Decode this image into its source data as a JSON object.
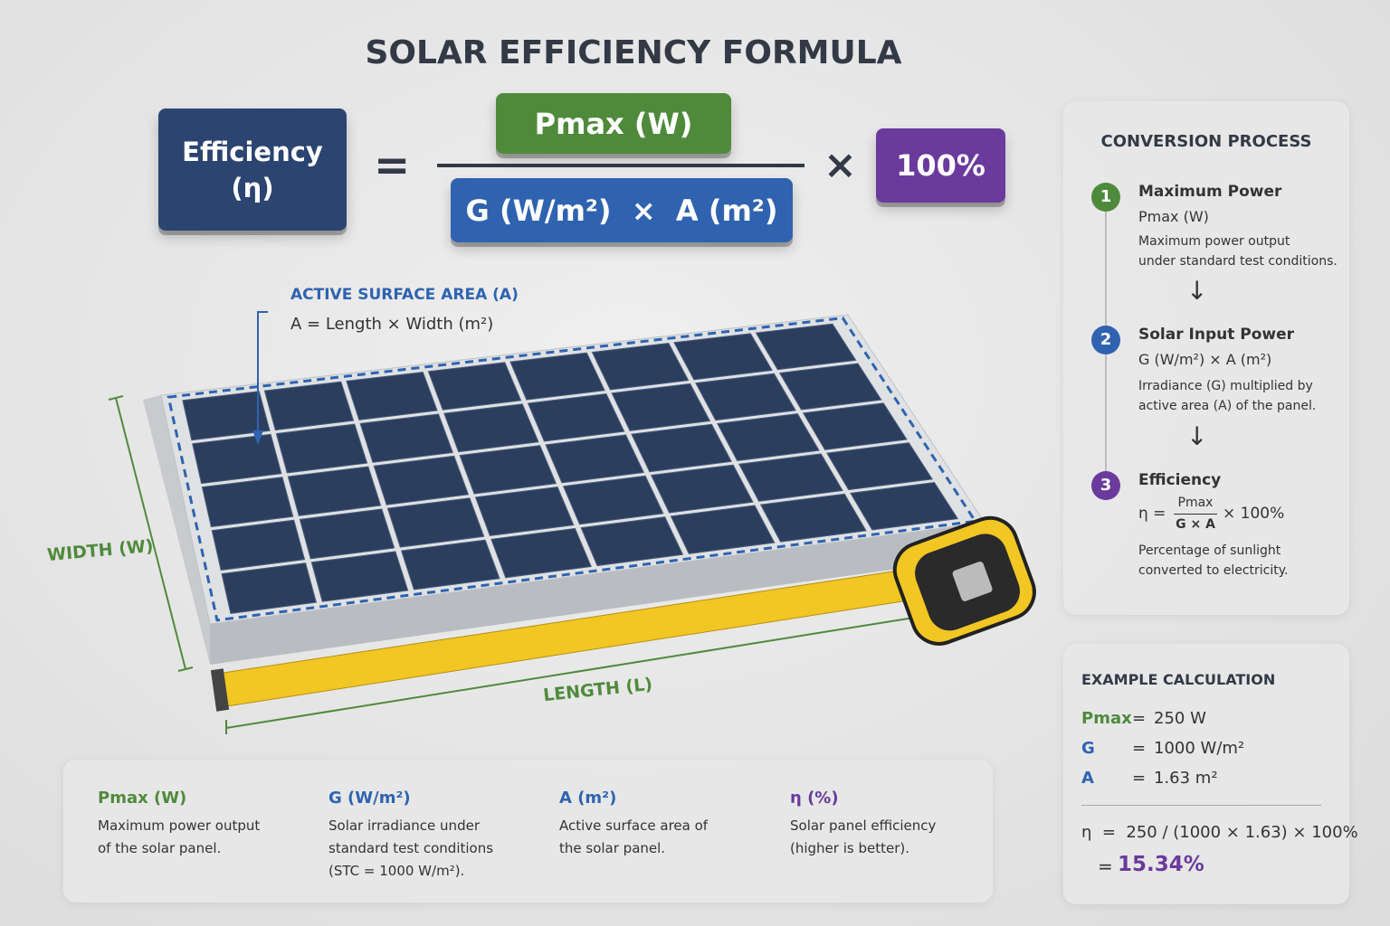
{
  "title": "SOLAR EFFICIENCY FORMULA",
  "formula": {
    "lhs": [
      "Efficiency",
      "(η)"
    ],
    "equals": "=",
    "numerator": "Pmax (W)",
    "denominator": "G (W/m²)  ×  A (m²)",
    "times": "×",
    "multiplier": "100%"
  },
  "panel": {
    "area_label": "ACTIVE SURFACE AREA (A)",
    "area_formula": "A = Length × Width (m²)",
    "width_label": "WIDTH (W)",
    "length_label": "LENGTH (L)"
  },
  "definitions": [
    {
      "term": "Pmax (W)",
      "lines": [
        "Maximum power output",
        "of the solar panel."
      ]
    },
    {
      "term": "G (W/m²)",
      "lines": [
        "Solar irradiance under",
        "standard test conditions",
        "(STC = 1000 W/m²)."
      ]
    },
    {
      "term": "A (m²)",
      "lines": [
        "Active surface area of",
        "the solar panel."
      ]
    },
    {
      "term": "η (%)",
      "lines": [
        "Solar panel efficiency",
        "(higher is better)."
      ]
    }
  ],
  "process": {
    "title": "CONVERSION PROCESS",
    "steps": [
      {
        "number": "1",
        "title": "Maximum Power",
        "subtitle": "Pmax (W)",
        "lines": [
          "Maximum power output",
          "under standard test conditions."
        ]
      },
      {
        "number": "2",
        "title": "Solar Input Power",
        "subtitle": "G (W/m²) × A (m²)",
        "lines": [
          "Irradiance (G) multiplied by",
          "active area (A) of the panel."
        ]
      },
      {
        "number": "3",
        "title": "Efficiency",
        "formula": {
          "lhs": "η =",
          "numerator": "Pmax",
          "denominator": "G × A",
          "rhs": "× 100%"
        },
        "lines": [
          "Percentage of sunlight",
          "converted to electricity."
        ]
      }
    ]
  },
  "example": {
    "title": "EXAMPLE CALCULATION",
    "rows": [
      {
        "label": "Pmax",
        "equals": "=",
        "value": "250 W"
      },
      {
        "label": "G",
        "equals": "=",
        "value": "1000 W/m²"
      },
      {
        "label": "A",
        "equals": "=",
        "value": "1.63 m²"
      }
    ],
    "result": {
      "expression": "η  =  250 / (1000 × 1.63) × 100%",
      "equals": "=",
      "value": "15.34%"
    }
  }
}
